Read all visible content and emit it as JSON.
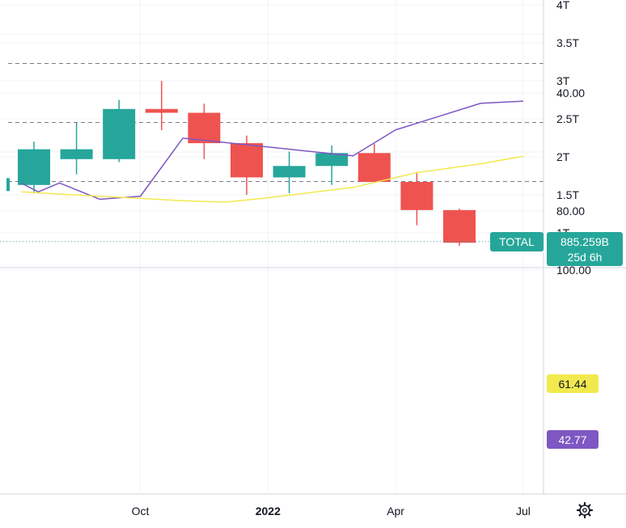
{
  "chart_data": [
    {
      "type": "candlestick",
      "symbol_label": "TOTAL",
      "price_label": "885.259B",
      "countdown_label": "25d 6h",
      "current_value": 0.885,
      "y_unit": "T",
      "ylim": [
        0.5,
        4.0
      ],
      "y_ticks": [
        {
          "value": 1.0,
          "label": "1T"
        },
        {
          "value": 1.5,
          "label": "1.5T"
        },
        {
          "value": 2.0,
          "label": "2T"
        },
        {
          "value": 2.5,
          "label": "2.5T"
        },
        {
          "value": 3.0,
          "label": "3T"
        },
        {
          "value": 3.5,
          "label": "3.5T"
        },
        {
          "value": 4.0,
          "label": "4T"
        }
      ],
      "x_ticks": [
        {
          "index": 2.5,
          "label": "Oct",
          "bold": false
        },
        {
          "index": 5.5,
          "label": "2022",
          "bold": true
        },
        {
          "index": 8.5,
          "label": "Apr",
          "bold": false
        },
        {
          "index": 11.5,
          "label": "Jul",
          "bold": false
        }
      ],
      "candles": [
        {
          "open": 1.63,
          "high": 2.2,
          "low": 1.52,
          "close": 2.1
        },
        {
          "open": 1.97,
          "high": 2.45,
          "low": 1.77,
          "close": 2.1
        },
        {
          "open": 1.97,
          "high": 2.75,
          "low": 1.93,
          "close": 2.63
        },
        {
          "open": 2.63,
          "high": 3.0,
          "low": 2.35,
          "close": 2.58
        },
        {
          "open": 2.58,
          "high": 2.7,
          "low": 1.97,
          "close": 2.18
        },
        {
          "open": 2.18,
          "high": 2.28,
          "low": 1.5,
          "close": 1.73
        },
        {
          "open": 1.73,
          "high": 2.07,
          "low": 1.52,
          "close": 1.88
        },
        {
          "open": 1.88,
          "high": 2.15,
          "low": 1.63,
          "close": 2.05
        },
        {
          "open": 2.05,
          "high": 2.17,
          "low": 1.67,
          "close": 1.67
        },
        {
          "open": 1.67,
          "high": 1.8,
          "low": 1.1,
          "close": 1.3
        },
        {
          "open": 1.3,
          "high": 1.32,
          "low": 0.83,
          "close": 0.87
        },
        {
          "open": 0.87,
          "high": 0.9,
          "low": 0.86,
          "close": 0.885
        }
      ],
      "colors": {
        "up": "#26a69a",
        "down": "#ef5350",
        "current_line": "#26a69a"
      }
    },
    {
      "type": "line",
      "ylim": [
        20,
        100
      ],
      "y_ticks": [
        {
          "value": 100,
          "label": "100.00"
        },
        {
          "value": 80,
          "label": "80.00"
        },
        {
          "value": 40,
          "label": "40.00"
        }
      ],
      "band": {
        "upper": 70,
        "middle": 50,
        "lower": 30
      },
      "series": [
        {
          "color": "#7e57c2",
          "values": [
            70.5,
            73.5,
            70.5,
            76.0,
            75.0,
            55.3,
            58.3,
            61.3,
            52.5,
            43.5,
            42.77
          ],
          "x_index": [
            -0.3,
            0.1,
            0.6,
            1.55,
            2.5,
            3.5,
            5.5,
            7.5,
            8.5,
            10.5,
            11.5
          ],
          "last_label": "42.77"
        },
        {
          "color": "#f2e94e",
          "values": [
            73.5,
            75.0,
            76.5,
            77.0,
            75.5,
            72.0,
            67.0,
            64.0,
            61.44
          ],
          "x_index": [
            -0.3,
            1.55,
            3.5,
            4.5,
            5.5,
            7.5,
            9.0,
            10.5,
            11.5
          ],
          "last_label": "61.44"
        }
      ]
    }
  ],
  "ui": {
    "settings_icon": "gear-icon"
  }
}
